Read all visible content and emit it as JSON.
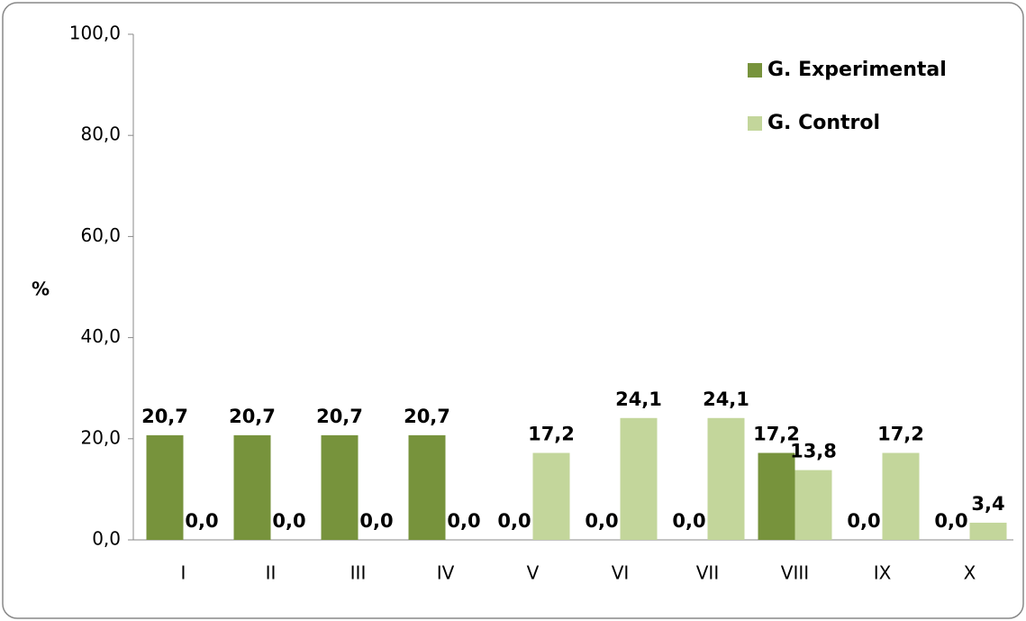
{
  "chart_data": {
    "type": "bar",
    "y_label": "%",
    "categories": [
      "I",
      "II",
      "III",
      "IV",
      "V",
      "VI",
      "VII",
      "VIII",
      "IX",
      "X"
    ],
    "series": [
      {
        "name": "G. Experimental",
        "color": "#77933c",
        "values": [
          20.7,
          20.7,
          20.7,
          20.7,
          0,
          0,
          0,
          17.2,
          0,
          0
        ],
        "value_labels": [
          "20,7",
          "20,7",
          "20,7",
          "20,7",
          "0,0",
          "0,0",
          "0,0",
          "17,2",
          "0,0",
          "0,0"
        ]
      },
      {
        "name": "G. Control",
        "color": "#c3d69b",
        "values": [
          0,
          0,
          0,
          0,
          17.2,
          24.1,
          24.1,
          13.8,
          17.2,
          3.4
        ],
        "value_labels": [
          "0,0",
          "0,0",
          "0,0",
          "0,0",
          "17,2",
          "24,1",
          "24,1",
          "13,8",
          "17,2",
          "3,4"
        ]
      }
    ],
    "ylim": [
      0,
      100
    ],
    "yticks": [
      {
        "value": 0,
        "label": "0,0"
      },
      {
        "value": 20,
        "label": "20,0"
      },
      {
        "value": 40,
        "label": "40,0"
      },
      {
        "value": 60,
        "label": "60,0"
      },
      {
        "value": 80,
        "label": "80,0"
      },
      {
        "value": 100,
        "label": "100,0"
      }
    ],
    "legend": "upper right"
  }
}
